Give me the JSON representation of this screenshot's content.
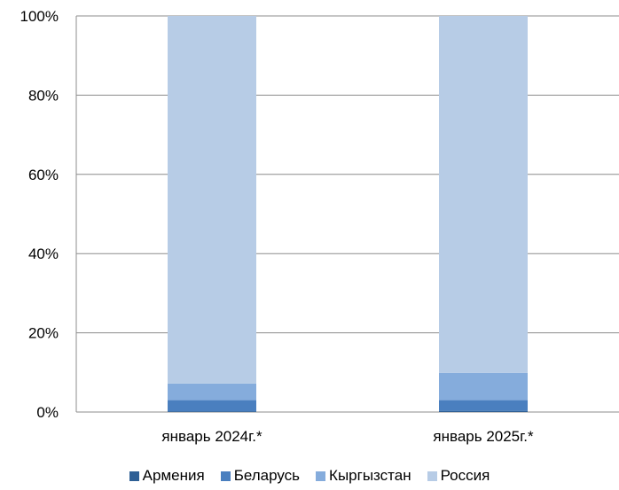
{
  "chart_data": {
    "type": "bar",
    "stacked": true,
    "title": "",
    "xlabel": "",
    "ylabel": "",
    "ylim": [
      0,
      100
    ],
    "yticks": [
      "0%",
      "20%",
      "40%",
      "60%",
      "80%",
      "100%"
    ],
    "categories": [
      "январь 2024г.*",
      "январь 2025г.*"
    ],
    "series": [
      {
        "name": "Армения",
        "color": "#2e5f95",
        "values": [
          0.2,
          0.3
        ]
      },
      {
        "name": "Беларусь",
        "color": "#4a7fbf",
        "values": [
          2.8,
          2.7
        ]
      },
      {
        "name": "Кыргызстан",
        "color": "#85acdc",
        "values": [
          4.2,
          6.9
        ]
      },
      {
        "name": "Россия",
        "color": "#b7cce6",
        "values": [
          92.8,
          90.1
        ]
      }
    ],
    "grid": true,
    "legend_position": "bottom"
  }
}
